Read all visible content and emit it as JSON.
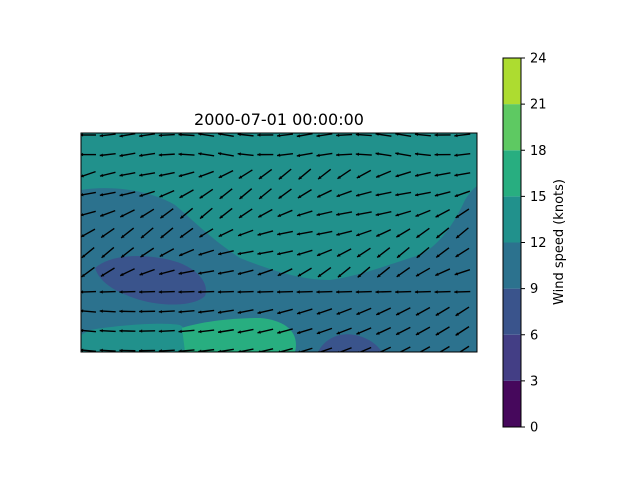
{
  "chart_data": {
    "type": "heatmap",
    "title": "2000-07-01 00:00:00",
    "xlabel": "",
    "ylabel": "",
    "colorbar": {
      "label": "Wind speed (knots)",
      "ticks": [
        "0",
        "3",
        "6",
        "9",
        "12",
        "15",
        "18",
        "21",
        "24"
      ],
      "range": [
        0,
        24
      ],
      "levels": [
        0,
        3,
        6,
        9,
        12,
        15,
        18,
        21,
        24
      ],
      "colors": [
        "#46085c",
        "#433e85",
        "#3a548c",
        "#2c728e",
        "#21918c",
        "#28ae80",
        "#5ec962",
        "#addc30",
        "#fde725"
      ]
    },
    "field_note": "Filled wind-speed contours (knots) with wind-direction arrows; mostly 12-15 knots, with 6-12 knot regions on the left and lower middle.",
    "grid": false
  }
}
